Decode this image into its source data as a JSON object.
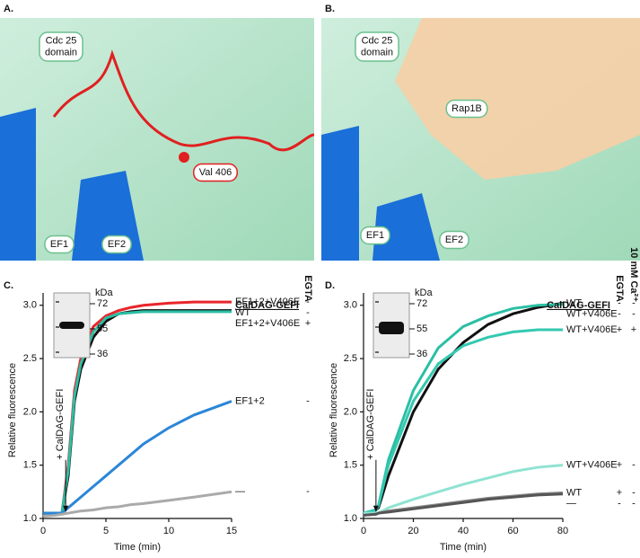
{
  "structures": [
    {
      "letter": "A.",
      "labels": [
        {
          "lines": [
            "Cdc 25",
            "domain"
          ]
        },
        {
          "lines": [
            "Val 406"
          ]
        },
        {
          "lines": [
            "EF1"
          ]
        },
        {
          "lines": [
            "EF2"
          ]
        }
      ]
    },
    {
      "letter": "B.",
      "labels": [
        {
          "lines": [
            "Cdc 25",
            "domain"
          ]
        },
        {
          "lines": [
            "Rap1B"
          ]
        },
        {
          "lines": [
            "EF1"
          ]
        },
        {
          "lines": [
            "EF2"
          ]
        }
      ]
    }
  ],
  "chart_data": [
    {
      "type": "line",
      "label": "C.",
      "x_label": "Time (min)",
      "y_label": "Relative fluorescence",
      "legend_title": "CalDAG-GEFI",
      "columns": [
        "EGTA"
      ],
      "annotation": {
        "text": "+ CalDAG-GEFI",
        "x": 1.8
      },
      "gel": {
        "unit": "kDa",
        "markers": [
          72,
          55,
          36
        ]
      },
      "xlim": [
        0,
        15
      ],
      "xticks": [
        0,
        5,
        10,
        15
      ],
      "ylim": [
        1,
        3.2
      ],
      "yticks": [
        {
          "value": 1,
          "label": "1.0"
        },
        1.5,
        {
          "value": 2,
          "label": "2.0"
        },
        2.5,
        {
          "value": 3,
          "label": "3.0"
        }
      ],
      "x": [
        0,
        1,
        1.5,
        2,
        2.5,
        3,
        4,
        5,
        6,
        7,
        8,
        10,
        12,
        15
      ],
      "series": [
        {
          "name": "EF1+2+V406E",
          "signs": [
            "-"
          ],
          "color": "#e8262b",
          "values": [
            1.05,
            1.05,
            1.05,
            1.5,
            2.2,
            2.5,
            2.8,
            2.9,
            2.95,
            2.98,
            3.0,
            3.02,
            3.03,
            3.03
          ]
        },
        {
          "name": "WT",
          "signs": [
            "-"
          ],
          "color": "#111111",
          "values": [
            1.05,
            1.05,
            1.05,
            1.4,
            2.1,
            2.4,
            2.7,
            2.85,
            2.92,
            2.94,
            2.95,
            2.95,
            2.95,
            2.95
          ]
        },
        {
          "name": "EF1+2+V406E",
          "signs": [
            "+"
          ],
          "color": "#2bbfa4",
          "values": [
            1.05,
            1.05,
            1.05,
            1.45,
            2.15,
            2.45,
            2.75,
            2.88,
            2.92,
            2.93,
            2.94,
            2.94,
            2.94,
            2.94
          ]
        },
        {
          "name": "EF1+2",
          "signs": [
            "-"
          ],
          "color": "#2b86d8",
          "values": [
            1.05,
            1.05,
            1.05,
            1.1,
            1.15,
            1.2,
            1.3,
            1.4,
            1.5,
            1.6,
            1.7,
            1.85,
            1.97,
            2.1
          ]
        },
        {
          "name": "—",
          "signs": [
            "-"
          ],
          "color": "#aaaaaa",
          "values": [
            1.02,
            1.03,
            1.04,
            1.05,
            1.06,
            1.07,
            1.08,
            1.1,
            1.11,
            1.13,
            1.14,
            1.17,
            1.2,
            1.25
          ]
        }
      ]
    },
    {
      "type": "line",
      "label": "D.",
      "x_label": "Time (min)",
      "y_label": "Relative fluorescence",
      "legend_title": "CalDAG-GEFI",
      "columns": [
        "EGTA",
        "10 mM Ca²⁺"
      ],
      "annotation": {
        "text": "+ CalDAG-GEFI",
        "x": 5
      },
      "gel": {
        "unit": "kDa",
        "markers": [
          72,
          55,
          36
        ]
      },
      "xlim": [
        0,
        80
      ],
      "xticks": [
        0,
        20,
        40,
        60,
        80
      ],
      "ylim": [
        1,
        3.2
      ],
      "yticks": [
        {
          "value": 1,
          "label": "1.0"
        },
        1.5,
        {
          "value": 2,
          "label": "2.0"
        },
        2.5,
        {
          "value": 3,
          "label": "3.0"
        }
      ],
      "x": [
        0,
        5,
        6,
        10,
        20,
        30,
        40,
        50,
        60,
        70,
        80
      ],
      "series": [
        {
          "name": "WT",
          "signs": [
            "-",
            "-"
          ],
          "color": "#111111",
          "values": [
            1.05,
            1.08,
            1.1,
            1.4,
            2.0,
            2.4,
            2.65,
            2.82,
            2.92,
            2.98,
            3.02
          ]
        },
        {
          "name": "WT+V406E",
          "signs": [
            "-",
            "-"
          ],
          "color": "#2bbfa4",
          "values": [
            1.05,
            1.08,
            1.12,
            1.55,
            2.2,
            2.6,
            2.8,
            2.9,
            2.97,
            3.0,
            3.01
          ]
        },
        {
          "name": "WT+V406E",
          "signs": [
            "+",
            "+"
          ],
          "color": "#33c9b0",
          "values": [
            1.05,
            1.08,
            1.12,
            1.5,
            2.1,
            2.45,
            2.62,
            2.7,
            2.75,
            2.77,
            2.77
          ]
        },
        {
          "name": "WT+V406E",
          "signs": [
            "+",
            "-"
          ],
          "color": "#8fe3d2",
          "values": [
            1.05,
            1.05,
            1.05,
            1.1,
            1.18,
            1.25,
            1.32,
            1.38,
            1.44,
            1.48,
            1.5
          ]
        },
        {
          "name": "WT",
          "signs": [
            "+",
            "-"
          ],
          "color": "#8a8a8a",
          "values": [
            1.03,
            1.04,
            1.05,
            1.07,
            1.1,
            1.13,
            1.16,
            1.19,
            1.21,
            1.23,
            1.24
          ]
        },
        {
          "name": "—",
          "signs": [
            "-",
            "-"
          ],
          "color": "#555555",
          "values": [
            1.03,
            1.04,
            1.05,
            1.06,
            1.09,
            1.12,
            1.15,
            1.18,
            1.2,
            1.22,
            1.23
          ]
        }
      ]
    }
  ]
}
